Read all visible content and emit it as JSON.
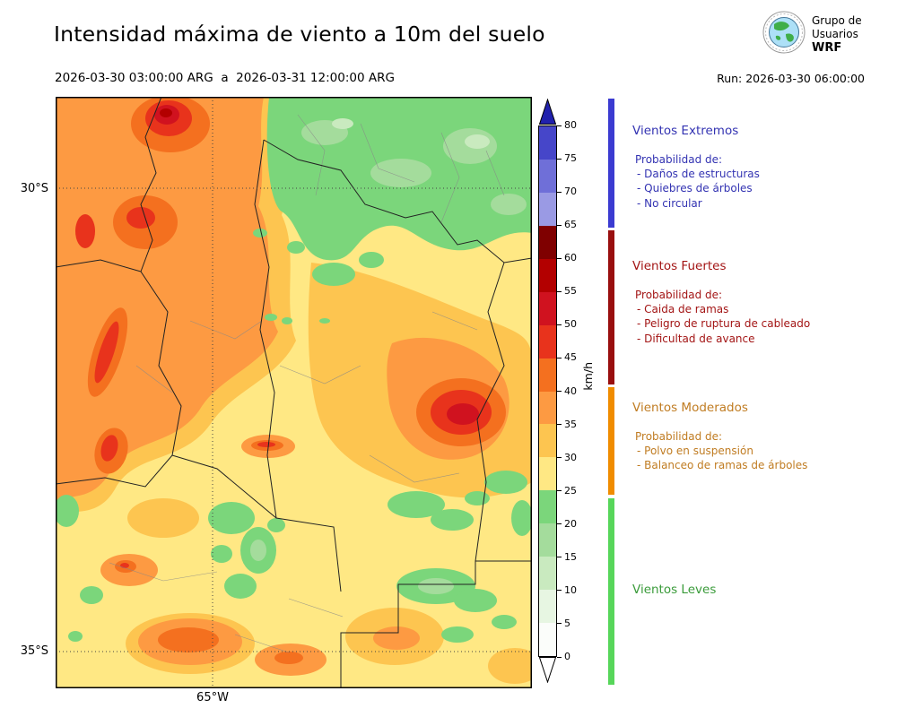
{
  "header": {
    "title": "Intensidad máxima de viento a 10m del suelo",
    "subtitle": "2026-03-30 03:00:00 ARG  a  2026-03-31 12:00:00 ARG",
    "run_label": "Run: 2026-03-30 06:00:00",
    "logo": {
      "line1": "Grupo de",
      "line2": "Usuarios",
      "line3": "WRF"
    }
  },
  "axes": {
    "lat_ticks": [
      "30°S",
      "35°S"
    ],
    "lon_ticks": [
      "65°W"
    ]
  },
  "colorbar": {
    "unit": "km/h",
    "ticks": [
      0,
      5,
      10,
      15,
      20,
      25,
      30,
      35,
      40,
      45,
      50,
      55,
      60,
      65,
      70,
      75,
      80
    ],
    "levels": [
      {
        "range": "0-5",
        "key": "l0_5"
      },
      {
        "range": "5-10",
        "key": "l5_10"
      },
      {
        "range": "10-15",
        "key": "l10_15"
      },
      {
        "range": "15-20",
        "key": "l15_20"
      },
      {
        "range": "20-25",
        "key": "l20_25"
      },
      {
        "range": "25-30",
        "key": "l25_30"
      },
      {
        "range": "30-35",
        "key": "l30_35"
      },
      {
        "range": "35-40",
        "key": "l35_40"
      },
      {
        "range": "40-45",
        "key": "l40_45"
      },
      {
        "range": "45-50",
        "key": "l45_50"
      },
      {
        "range": "50-55",
        "key": "l50_55"
      },
      {
        "range": "55-60",
        "key": "l55_60"
      },
      {
        "range": "60-65",
        "key": "l60_65"
      },
      {
        "range": "65-70",
        "key": "l65_70"
      },
      {
        "range": "70-75",
        "key": "l70_75"
      },
      {
        "range": "75-80",
        "key": "l75_80"
      }
    ]
  },
  "legend": {
    "sections": [
      {
        "title": "Vientos Extremos",
        "text_key": "extremos_text",
        "bar_key": "extremos_bar",
        "intro": "Probabilidad de:",
        "items": [
          "- Daños de estructuras",
          "- Quiebres de árboles",
          "- No circular"
        ]
      },
      {
        "title": "Vientos Fuertes",
        "text_key": "fuertes_text",
        "bar_key": "fuertes_bar",
        "intro": "Probabilidad de:",
        "items": [
          "- Caida de ramas",
          "- Peligro de ruptura de cableado",
          "- Dificultad de avance"
        ]
      },
      {
        "title": "Vientos Moderados",
        "text_key": "moderados_text",
        "bar_key": "moderados_bar",
        "intro": "Probabilidad de:",
        "items": [
          "- Polvo en suspensión",
          "- Balanceo de ramas de árboles"
        ]
      },
      {
        "title": "Vientos Leves",
        "text_key": "leves_text",
        "bar_key": "leves_bar",
        "intro": "",
        "items": []
      }
    ]
  },
  "colors": {
    "l0_5": "#fbfdfa",
    "l5_10": "#e7f6e2",
    "l10_15": "#c9eabf",
    "l15_20": "#a4dc9c",
    "l20_25": "#7bd67b",
    "l25_30": "#ffe884",
    "l30_35": "#fdc550",
    "l35_40": "#fd9a42",
    "l40_45": "#f4701f",
    "l45_50": "#e8331c",
    "l50_55": "#d0121f",
    "l55_60": "#b30000",
    "l60_65": "#7f0000",
    "l65_70": "#9a9ae4",
    "l70_75": "#6f6fd8",
    "l75_80": "#4646c9",
    "arrow_high": "#2121ad",
    "arrow_low": "#ffffff",
    "extremos_bar": "#3b3bd1",
    "extremos_text": "#3333b2",
    "fuertes_bar": "#990f0f",
    "fuertes_text": "#a31515",
    "moderados_bar": "#f08c00",
    "moderados_text": "#c07c22",
    "leves_bar": "#57d65a",
    "leves_text": "#3a9b3a"
  },
  "chart_data": {
    "type": "heatmap",
    "title": "Intensidad máxima de viento a 10m del suelo",
    "period": {
      "start": "2026-03-30 03:00:00 ARG",
      "end": "2026-03-31 12:00:00 ARG"
    },
    "model_run": "2026-03-30 06:00:00",
    "variable": "Maximum wind speed at 10 m above ground",
    "unit": "km/h",
    "colorbar": {
      "min": 0,
      "max": 80,
      "tick_step": 5,
      "extend": "both"
    },
    "axes": {
      "lat_ticks": [
        "30°S",
        "35°S"
      ],
      "lon_ticks": [
        "65°W"
      ]
    },
    "categories": [
      {
        "label": "Vientos Leves",
        "range_kmh": [
          0,
          25
        ]
      },
      {
        "label": "Vientos Moderados",
        "range_kmh": [
          25,
          40
        ]
      },
      {
        "label": "Vientos Fuertes",
        "range_kmh": [
          40,
          65
        ]
      },
      {
        "label": "Vientos Extremos",
        "range_kmh": [
          65,
          80
        ]
      }
    ],
    "summary": "Filled contour map over central Argentina (around 65°W, 30–35°S). Most of the domain shows 25–45 km/h (yellow/orange); local maxima of 45–60 km/h appear in the northwest, along the western mountains and in an east-central core; green areas of 5–25 km/h cover the northeast and scattered southern/eastern patches."
  }
}
